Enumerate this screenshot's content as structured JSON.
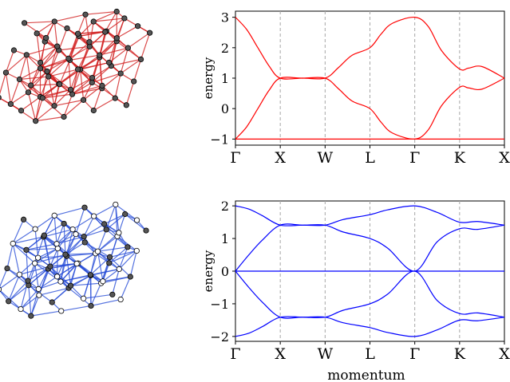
{
  "colors": {
    "band_top": "#ff0000",
    "band_bottom": "#0000ff",
    "frame": "#000000",
    "kline": "#a6a6a6",
    "atom_dark": "#555555",
    "atom_light": "#ffffff",
    "bond_top": "#d21f1f",
    "bond_bottom": "#2a4fd8"
  },
  "chart_data": [
    {
      "type": "image",
      "name": "top-left-lattice",
      "description_hint": "3D lattice with red bonds and dark gray atoms"
    },
    {
      "type": "line",
      "title": "",
      "xlabel": "",
      "ylabel": "energy",
      "xlim": [
        0,
        6
      ],
      "ylim": [
        -1.2,
        3.2
      ],
      "x_ticks": [
        0,
        1,
        2,
        3,
        4,
        5,
        6
      ],
      "x_tick_labels": [
        "Γ",
        "X",
        "W",
        "L",
        "Γ",
        "K",
        "X"
      ],
      "y_ticks": [
        -1,
        0,
        1,
        2,
        3
      ],
      "y_tick_labels": [
        "−1",
        "0",
        "1",
        "2",
        "3"
      ],
      "vertical_lines_at": [
        1,
        2,
        3,
        4,
        5
      ],
      "series": [
        {
          "values": [
            [
              0,
              -1
            ],
            [
              1,
              -1
            ],
            [
              2,
              -1
            ],
            [
              3,
              -1
            ],
            [
              4,
              -1
            ],
            [
              5,
              -1
            ],
            [
              6,
              -1
            ]
          ]
        },
        {
          "values": [
            [
              0,
              -1
            ],
            [
              0.25,
              -0.6
            ],
            [
              0.5,
              0.0
            ],
            [
              0.75,
              0.6
            ],
            [
              1,
              1
            ],
            [
              1.5,
              1
            ],
            [
              2,
              1
            ],
            [
              2.3,
              1.35
            ],
            [
              2.6,
              1.75
            ],
            [
              3,
              2
            ],
            [
              3.25,
              2.45
            ],
            [
              3.5,
              2.8
            ],
            [
              4,
              3
            ],
            [
              4.3,
              2.7
            ],
            [
              4.6,
              1.9
            ],
            [
              5,
              1.3
            ],
            [
              5.2,
              1.33
            ],
            [
              5.5,
              1.38
            ],
            [
              6,
              1
            ]
          ]
        },
        {
          "values": [
            [
              0,
              3
            ],
            [
              0.25,
              2.6
            ],
            [
              0.5,
              2.0
            ],
            [
              0.75,
              1.4
            ],
            [
              1,
              1
            ],
            [
              1.5,
              1
            ],
            [
              2,
              1
            ],
            [
              2.3,
              0.65
            ],
            [
              2.6,
              0.25
            ],
            [
              3,
              0
            ],
            [
              3.25,
              -0.45
            ],
            [
              3.5,
              -0.8
            ],
            [
              4,
              -1
            ],
            [
              4.3,
              -0.7
            ],
            [
              4.6,
              0.1
            ],
            [
              5,
              0.7
            ],
            [
              5.2,
              0.68
            ],
            [
              5.5,
              0.64
            ],
            [
              6,
              1
            ]
          ]
        }
      ]
    },
    {
      "type": "image",
      "name": "bottom-left-lattice",
      "description_hint": "3D lattice with blue bonds, dark gray and white atoms"
    },
    {
      "type": "line",
      "title": "",
      "xlabel": "momentum",
      "ylabel": "energy",
      "xlim": [
        0,
        6
      ],
      "ylim": [
        -2.15,
        2.15
      ],
      "x_ticks": [
        0,
        1,
        2,
        3,
        4,
        5,
        6
      ],
      "x_tick_labels": [
        "Γ",
        "X",
        "W",
        "L",
        "Γ",
        "K",
        "X"
      ],
      "y_ticks": [
        -2,
        -1,
        0,
        1,
        2
      ],
      "y_tick_labels": [
        "−2",
        "−1",
        "0",
        "1",
        "2"
      ],
      "vertical_lines_at": [
        1,
        2,
        3,
        4,
        5
      ],
      "series": [
        {
          "values": [
            [
              0,
              0
            ],
            [
              1,
              0
            ],
            [
              2,
              0
            ],
            [
              3,
              0
            ],
            [
              4,
              0
            ],
            [
              5,
              0
            ],
            [
              6,
              0
            ]
          ]
        },
        {
          "values": [
            [
              0,
              2
            ],
            [
              0.3,
              1.9
            ],
            [
              0.6,
              1.7
            ],
            [
              1,
              1.41
            ],
            [
              1.5,
              1.41
            ],
            [
              2,
              1.41
            ],
            [
              2.4,
              1.58
            ],
            [
              3,
              1.73
            ],
            [
              3.4,
              1.88
            ],
            [
              4,
              2
            ],
            [
              4.5,
              1.8
            ],
            [
              5,
              1.5
            ],
            [
              5.4,
              1.52
            ],
            [
              6,
              1.41
            ]
          ]
        },
        {
          "values": [
            [
              0,
              0
            ],
            [
              0.3,
              0.5
            ],
            [
              0.6,
              0.95
            ],
            [
              1,
              1.41
            ],
            [
              1.5,
              1.41
            ],
            [
              2,
              1.41
            ],
            [
              2.4,
              1.2
            ],
            [
              3,
              1
            ],
            [
              3.4,
              0.7
            ],
            [
              4,
              0
            ],
            [
              4.5,
              0.9
            ],
            [
              5,
              1.3
            ],
            [
              5.4,
              1.28
            ],
            [
              6,
              1.41
            ]
          ]
        },
        {
          "values": [
            [
              0,
              0
            ],
            [
              0.3,
              -0.5
            ],
            [
              0.6,
              -0.95
            ],
            [
              1,
              -1.41
            ],
            [
              1.5,
              -1.41
            ],
            [
              2,
              -1.41
            ],
            [
              2.4,
              -1.2
            ],
            [
              3,
              -1
            ],
            [
              3.4,
              -0.7
            ],
            [
              4,
              0
            ],
            [
              4.5,
              -0.9
            ],
            [
              5,
              -1.3
            ],
            [
              5.4,
              -1.28
            ],
            [
              6,
              -1.41
            ]
          ]
        },
        {
          "values": [
            [
              0,
              -2
            ],
            [
              0.3,
              -1.9
            ],
            [
              0.6,
              -1.7
            ],
            [
              1,
              -1.41
            ],
            [
              1.5,
              -1.41
            ],
            [
              2,
              -1.41
            ],
            [
              2.4,
              -1.58
            ],
            [
              3,
              -1.73
            ],
            [
              3.4,
              -1.88
            ],
            [
              4,
              -2
            ],
            [
              4.5,
              -1.8
            ],
            [
              5,
              -1.5
            ],
            [
              5.4,
              -1.52
            ],
            [
              6,
              -1.41
            ]
          ]
        }
      ]
    }
  ]
}
